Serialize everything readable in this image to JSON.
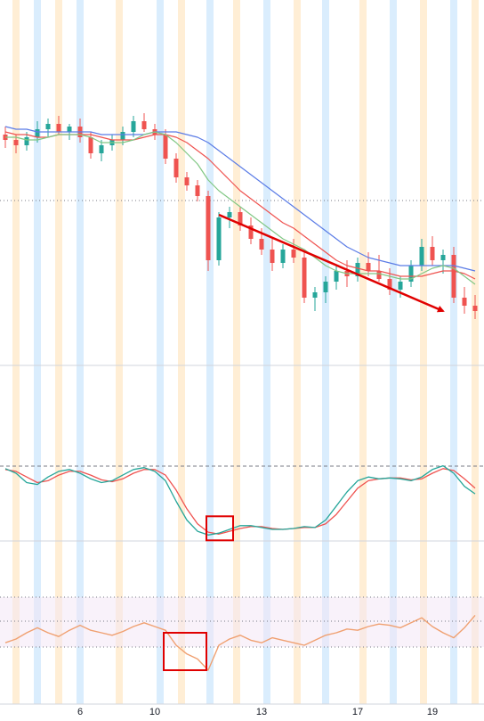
{
  "colors": {
    "up": "#26a69a",
    "down": "#ef5350",
    "ma_fast": "#81c784",
    "ma_mid": "#ef5350",
    "ma_slow": "#5b7ce6",
    "stoch_k": "#26a69a",
    "stoch_d": "#ef5350",
    "rsi": "#f0a070",
    "band_blue": "#bbdefb",
    "band_orange": "#ffe0b2",
    "annotation": "#e00000"
  },
  "chart_data": [
    {
      "type": "candlestick",
      "panel": "price",
      "x_ticks": [
        "6",
        "10",
        "13",
        "17",
        "19"
      ],
      "candles": [
        {
          "o": 33,
          "h": 36,
          "l": 28,
          "c": 31
        },
        {
          "o": 31,
          "h": 33,
          "l": 26,
          "c": 29
        },
        {
          "o": 29,
          "h": 34,
          "l": 27,
          "c": 32
        },
        {
          "o": 32,
          "h": 38,
          "l": 30,
          "c": 35
        },
        {
          "o": 35,
          "h": 39,
          "l": 32,
          "c": 37
        },
        {
          "o": 37,
          "h": 40,
          "l": 33,
          "c": 34
        },
        {
          "o": 34,
          "h": 37,
          "l": 31,
          "c": 36
        },
        {
          "o": 36,
          "h": 39,
          "l": 30,
          "c": 32
        },
        {
          "o": 32,
          "h": 34,
          "l": 24,
          "c": 26
        },
        {
          "o": 26,
          "h": 31,
          "l": 23,
          "c": 29
        },
        {
          "o": 29,
          "h": 33,
          "l": 27,
          "c": 31
        },
        {
          "o": 31,
          "h": 36,
          "l": 29,
          "c": 34
        },
        {
          "o": 34,
          "h": 40,
          "l": 32,
          "c": 38
        },
        {
          "o": 38,
          "h": 41,
          "l": 34,
          "c": 35
        },
        {
          "o": 35,
          "h": 37,
          "l": 31,
          "c": 33
        },
        {
          "o": 33,
          "h": 35,
          "l": 22,
          "c": 24
        },
        {
          "o": 24,
          "h": 26,
          "l": 15,
          "c": 17
        },
        {
          "o": 17,
          "h": 19,
          "l": 12,
          "c": 14
        },
        {
          "o": 14,
          "h": 16,
          "l": 8,
          "c": 10
        },
        {
          "o": 10,
          "h": 12,
          "l": -18,
          "c": -14
        },
        {
          "o": -14,
          "h": 4,
          "l": -16,
          "c": 2
        },
        {
          "o": 2,
          "h": 6,
          "l": -2,
          "c": 4
        },
        {
          "o": 4,
          "h": 6,
          "l": -3,
          "c": -1
        },
        {
          "o": -1,
          "h": 2,
          "l": -8,
          "c": -6
        },
        {
          "o": -6,
          "h": -2,
          "l": -12,
          "c": -10
        },
        {
          "o": -10,
          "h": -6,
          "l": -18,
          "c": -15
        },
        {
          "o": -15,
          "h": -8,
          "l": -17,
          "c": -10
        },
        {
          "o": -10,
          "h": -6,
          "l": -15,
          "c": -13
        },
        {
          "o": -13,
          "h": -11,
          "l": -30,
          "c": -28
        },
        {
          "o": -28,
          "h": -24,
          "l": -33,
          "c": -26
        },
        {
          "o": -26,
          "h": -20,
          "l": -30,
          "c": -22
        },
        {
          "o": -22,
          "h": -16,
          "l": -25,
          "c": -18
        },
        {
          "o": -18,
          "h": -14,
          "l": -24,
          "c": -20
        },
        {
          "o": -20,
          "h": -13,
          "l": -22,
          "c": -15
        },
        {
          "o": -15,
          "h": -11,
          "l": -20,
          "c": -18
        },
        {
          "o": -18,
          "h": -12,
          "l": -22,
          "c": -21
        },
        {
          "o": -21,
          "h": -17,
          "l": -27,
          "c": -25
        },
        {
          "o": -25,
          "h": -20,
          "l": -28,
          "c": -22
        },
        {
          "o": -22,
          "h": -14,
          "l": -24,
          "c": -16
        },
        {
          "o": -16,
          "h": -6,
          "l": -18,
          "c": -9
        },
        {
          "o": -9,
          "h": -5,
          "l": -16,
          "c": -14
        },
        {
          "o": -14,
          "h": -10,
          "l": -19,
          "c": -12
        },
        {
          "o": -12,
          "h": -9,
          "l": -30,
          "c": -28
        },
        {
          "o": -28,
          "h": -24,
          "l": -34,
          "c": -31
        },
        {
          "o": -31,
          "h": -27,
          "l": -36,
          "c": -33
        }
      ],
      "ma_fast": [
        32,
        32,
        31,
        31,
        32,
        33,
        33,
        33,
        32,
        30,
        30,
        30,
        31,
        33,
        34,
        33,
        30,
        26,
        22,
        16,
        12,
        9,
        6,
        3,
        0,
        -3,
        -6,
        -8,
        -10,
        -13,
        -16,
        -18,
        -19,
        -19,
        -19,
        -19,
        -20,
        -21,
        -21,
        -19,
        -17,
        -16,
        -17,
        -20,
        -23
      ],
      "ma_mid": [
        34,
        33,
        33,
        32,
        32,
        33,
        33,
        33,
        33,
        32,
        31,
        31,
        31,
        32,
        33,
        33,
        32,
        30,
        27,
        24,
        20,
        16,
        12,
        9,
        6,
        3,
        0,
        -2,
        -5,
        -8,
        -11,
        -14,
        -16,
        -17,
        -18,
        -18,
        -19,
        -20,
        -20,
        -20,
        -19,
        -18,
        -18,
        -19,
        -21
      ],
      "ma_slow": [
        36,
        35,
        35,
        34,
        34,
        34,
        34,
        34,
        34,
        33,
        33,
        33,
        33,
        33,
        34,
        34,
        34,
        33,
        32,
        30,
        27,
        24,
        21,
        18,
        15,
        12,
        9,
        6,
        3,
        0,
        -3,
        -6,
        -9,
        -11,
        -13,
        -14,
        -15,
        -16,
        -16,
        -16,
        -16,
        -16,
        -16,
        -17,
        -18
      ],
      "trend_arrow": {
        "from_index": 20,
        "from_value": 3,
        "to_index": 41,
        "to_value": -33
      }
    },
    {
      "type": "line",
      "panel": "stochastic",
      "series": [
        {
          "key": "k",
          "values": [
            85,
            80,
            70,
            68,
            76,
            82,
            84,
            80,
            74,
            70,
            72,
            78,
            84,
            86,
            82,
            72,
            50,
            30,
            18,
            14,
            16,
            20,
            24,
            24,
            22,
            20,
            20,
            21,
            23,
            22,
            30,
            45,
            60,
            72,
            76,
            74,
            75,
            74,
            72,
            76,
            84,
            88,
            80,
            66,
            58
          ]
        },
        {
          "key": "d",
          "values": [
            84,
            82,
            76,
            70,
            72,
            78,
            82,
            82,
            78,
            73,
            71,
            74,
            80,
            84,
            84,
            78,
            62,
            42,
            26,
            17,
            15,
            18,
            21,
            23,
            23,
            21,
            20,
            21,
            22,
            22,
            26,
            36,
            50,
            64,
            72,
            74,
            75,
            75,
            73,
            74,
            80,
            85,
            83,
            74,
            64
          ]
        }
      ],
      "ylim": [
        0,
        100
      ]
    },
    {
      "type": "line",
      "panel": "rsi",
      "series": [
        {
          "key": "rsi",
          "values": [
            42,
            45,
            50,
            54,
            50,
            47,
            52,
            56,
            52,
            50,
            48,
            51,
            55,
            58,
            55,
            52,
            40,
            33,
            29,
            20,
            40,
            45,
            48,
            44,
            42,
            46,
            44,
            42,
            40,
            44,
            48,
            50,
            53,
            52,
            55,
            57,
            56,
            54,
            58,
            62,
            55,
            50,
            46,
            54,
            64
          ]
        }
      ],
      "ylim": [
        0,
        100
      ]
    }
  ]
}
